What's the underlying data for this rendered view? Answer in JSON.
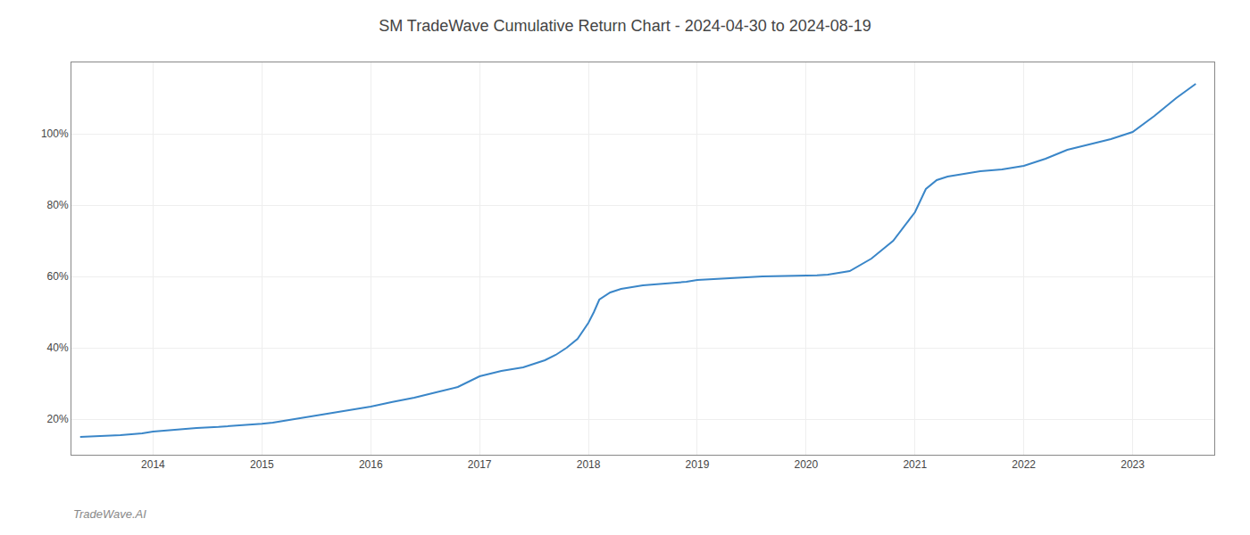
{
  "chart_data": {
    "type": "line",
    "title": "SM TradeWave Cumulative Return Chart - 2024-04-30 to 2024-08-19",
    "annotations": [
      {
        "text": "TradeWave.AI"
      }
    ],
    "color": "#3a86c8",
    "grid": true,
    "x": [
      2013.33,
      2013.5,
      2013.7,
      2013.9,
      2014.0,
      2014.2,
      2014.4,
      2014.6,
      2014.8,
      2015.0,
      2015.1,
      2015.2,
      2015.4,
      2015.6,
      2015.8,
      2016.0,
      2016.2,
      2016.4,
      2016.6,
      2016.8,
      2017.0,
      2017.2,
      2017.4,
      2017.5,
      2017.6,
      2017.7,
      2017.8,
      2017.9,
      2018.0,
      2018.05,
      2018.1,
      2018.2,
      2018.3,
      2018.5,
      2018.7,
      2018.9,
      2019.0,
      2019.2,
      2019.4,
      2019.6,
      2019.8,
      2020.0,
      2020.05,
      2020.1,
      2020.2,
      2020.4,
      2020.6,
      2020.8,
      2021.0,
      2021.1,
      2021.2,
      2021.3,
      2021.4,
      2021.6,
      2021.8,
      2022.0,
      2022.2,
      2022.4,
      2022.6,
      2022.8,
      2023.0,
      2023.2,
      2023.4,
      2023.58
    ],
    "values": [
      15.0,
      15.2,
      15.5,
      16.0,
      16.5,
      17.0,
      17.5,
      17.8,
      18.2,
      18.7,
      19.0,
      19.5,
      20.5,
      21.5,
      22.5,
      23.5,
      24.8,
      26.0,
      27.5,
      29.0,
      32.0,
      33.5,
      34.5,
      35.5,
      36.5,
      38.0,
      40.0,
      42.5,
      47.0,
      50.0,
      53.5,
      55.5,
      56.5,
      57.5,
      58.0,
      58.5,
      59.0,
      59.3,
      59.7,
      60.0,
      60.1,
      60.2,
      60.2,
      60.3,
      60.5,
      61.5,
      65.0,
      70.0,
      78.0,
      84.5,
      87.0,
      88.0,
      88.5,
      89.5,
      90.0,
      91.0,
      93.0,
      95.5,
      97.0,
      98.5,
      100.5,
      105.0,
      110.0,
      114.0
    ],
    "xlim": [
      2013.25,
      2023.75
    ],
    "xticks": [
      2014,
      2015,
      2016,
      2017,
      2018,
      2019,
      2020,
      2021,
      2022,
      2023
    ],
    "ylim": [
      10,
      120
    ],
    "yticks": [
      {
        "value": 20,
        "label": "20%"
      },
      {
        "value": 40,
        "label": "40%"
      },
      {
        "value": 60,
        "label": "60%"
      },
      {
        "value": 80,
        "label": "80%"
      },
      {
        "value": 100,
        "label": "100%"
      }
    ]
  }
}
